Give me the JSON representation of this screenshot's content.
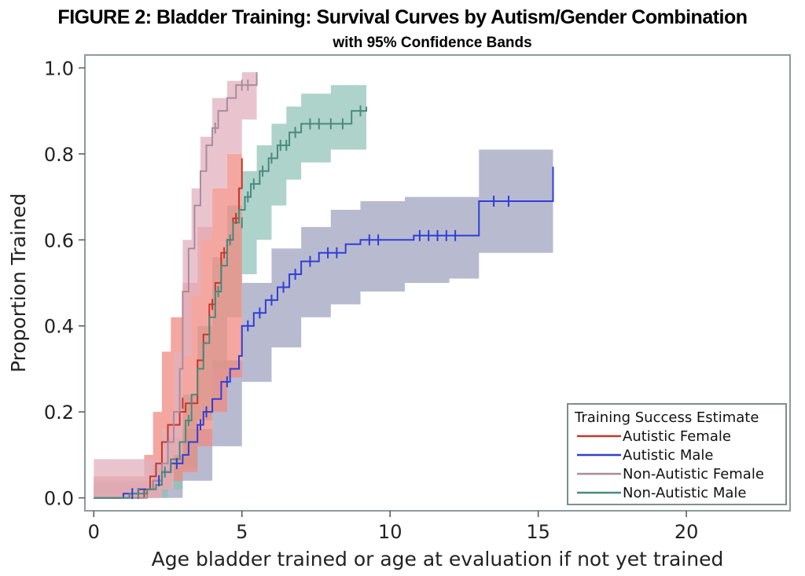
{
  "chart_data": {
    "type": "line",
    "title_prefix": "FIGURE 2:",
    "title_rest": " Bladder Training: Survival Curves by Autism/Gender Combination",
    "subtitle": "with 95% Confidence Bands",
    "xlabel": "Age bladder trained or age at evaluation if not yet trained",
    "ylabel": "Proportion Trained",
    "xlim": [
      -0.3,
      23.5
    ],
    "ylim": [
      -0.03,
      1.03
    ],
    "xticks": [
      0,
      5,
      10,
      15,
      20
    ],
    "yticks": [
      0.0,
      0.2,
      0.4,
      0.6,
      0.8,
      1.0
    ],
    "ytick_labels": [
      "0.0",
      "0.2",
      "0.4",
      "0.6",
      "0.8",
      "1.0"
    ],
    "grid": false,
    "legend": {
      "title": "Training Success Estimate",
      "placement": "bottom-right"
    },
    "series": [
      {
        "name": "Autistic Female",
        "color": "#c0392b",
        "band_color": "#f08a80",
        "band_opacity": 0.75,
        "steps": [
          [
            0,
            0.0
          ],
          [
            1.7,
            0.0
          ],
          [
            1.7,
            0.02
          ],
          [
            1.9,
            0.02
          ],
          [
            1.9,
            0.05
          ],
          [
            2.1,
            0.05
          ],
          [
            2.1,
            0.08
          ],
          [
            2.3,
            0.08
          ],
          [
            2.3,
            0.13
          ],
          [
            2.5,
            0.13
          ],
          [
            2.5,
            0.17
          ],
          [
            2.9,
            0.17
          ],
          [
            2.9,
            0.2
          ],
          [
            3.1,
            0.2
          ],
          [
            3.1,
            0.22
          ],
          [
            3.5,
            0.22
          ],
          [
            3.5,
            0.32
          ],
          [
            3.7,
            0.32
          ],
          [
            3.7,
            0.38
          ],
          [
            3.9,
            0.38
          ],
          [
            3.9,
            0.45
          ],
          [
            4.1,
            0.45
          ],
          [
            4.1,
            0.5
          ],
          [
            4.3,
            0.5
          ],
          [
            4.3,
            0.57
          ],
          [
            4.5,
            0.57
          ],
          [
            4.5,
            0.6
          ],
          [
            4.7,
            0.6
          ],
          [
            4.7,
            0.65
          ],
          [
            4.9,
            0.65
          ],
          [
            4.9,
            0.72
          ],
          [
            5.0,
            0.72
          ],
          [
            5.0,
            0.79
          ]
        ],
        "band": {
          "x": [
            0,
            1.7,
            2.0,
            2.3,
            2.6,
            3.0,
            3.5,
            4.0,
            4.5,
            5.0
          ],
          "lower": [
            0.0,
            0.0,
            0.0,
            0.02,
            0.04,
            0.06,
            0.12,
            0.2,
            0.28,
            0.38
          ],
          "upper": [
            0.05,
            0.1,
            0.2,
            0.34,
            0.42,
            0.5,
            0.63,
            0.72,
            0.8,
            0.85
          ]
        },
        "censored": [
          [
            3.0,
            0.22
          ],
          [
            4.0,
            0.45
          ],
          [
            4.4,
            0.57
          ],
          [
            4.8,
            0.65
          ]
        ]
      },
      {
        "name": "Autistic Male",
        "color": "#2f3fd6",
        "band_color": "#9a9cbc",
        "band_opacity": 0.7,
        "steps": [
          [
            0,
            0.0
          ],
          [
            1.0,
            0.0
          ],
          [
            1.0,
            0.01
          ],
          [
            1.5,
            0.01
          ],
          [
            1.5,
            0.02
          ],
          [
            2.0,
            0.02
          ],
          [
            2.0,
            0.04
          ],
          [
            2.3,
            0.04
          ],
          [
            2.3,
            0.06
          ],
          [
            2.6,
            0.06
          ],
          [
            2.6,
            0.08
          ],
          [
            3.0,
            0.08
          ],
          [
            3.0,
            0.1
          ],
          [
            3.2,
            0.1
          ],
          [
            3.2,
            0.13
          ],
          [
            3.5,
            0.13
          ],
          [
            3.5,
            0.17
          ],
          [
            3.7,
            0.17
          ],
          [
            3.7,
            0.2
          ],
          [
            4.0,
            0.2
          ],
          [
            4.0,
            0.23
          ],
          [
            4.3,
            0.23
          ],
          [
            4.3,
            0.27
          ],
          [
            4.6,
            0.27
          ],
          [
            4.6,
            0.3
          ],
          [
            4.9,
            0.3
          ],
          [
            4.9,
            0.33
          ],
          [
            5.0,
            0.33
          ],
          [
            5.0,
            0.4
          ],
          [
            5.4,
            0.4
          ],
          [
            5.4,
            0.43
          ],
          [
            5.8,
            0.43
          ],
          [
            5.8,
            0.46
          ],
          [
            6.2,
            0.46
          ],
          [
            6.2,
            0.49
          ],
          [
            6.6,
            0.49
          ],
          [
            6.6,
            0.52
          ],
          [
            7.0,
            0.52
          ],
          [
            7.0,
            0.55
          ],
          [
            7.6,
            0.55
          ],
          [
            7.6,
            0.57
          ],
          [
            8.5,
            0.57
          ],
          [
            8.5,
            0.59
          ],
          [
            9.0,
            0.59
          ],
          [
            9.0,
            0.6
          ],
          [
            10.8,
            0.6
          ],
          [
            10.8,
            0.61
          ],
          [
            13.0,
            0.61
          ],
          [
            13.0,
            0.69
          ],
          [
            15.5,
            0.69
          ],
          [
            15.5,
            0.77
          ]
        ],
        "band": {
          "x": [
            0,
            1.0,
            2.0,
            3.0,
            4.0,
            5.0,
            6.0,
            7.0,
            8.0,
            9.0,
            10.5,
            12.0,
            13.0,
            15.5
          ],
          "lower": [
            0.0,
            0.0,
            0.0,
            0.04,
            0.12,
            0.27,
            0.35,
            0.42,
            0.45,
            0.48,
            0.5,
            0.51,
            0.57,
            0.57
          ],
          "upper": [
            0.03,
            0.03,
            0.07,
            0.16,
            0.32,
            0.5,
            0.58,
            0.63,
            0.67,
            0.69,
            0.7,
            0.7,
            0.81,
            0.81
          ]
        },
        "censored": [
          [
            1.3,
            0.01
          ],
          [
            2.2,
            0.04
          ],
          [
            2.8,
            0.08
          ],
          [
            3.6,
            0.17
          ],
          [
            3.8,
            0.2
          ],
          [
            4.5,
            0.27
          ],
          [
            5.2,
            0.4
          ],
          [
            5.6,
            0.43
          ],
          [
            6.0,
            0.46
          ],
          [
            6.4,
            0.49
          ],
          [
            6.8,
            0.52
          ],
          [
            7.3,
            0.55
          ],
          [
            7.9,
            0.57
          ],
          [
            8.2,
            0.57
          ],
          [
            9.3,
            0.6
          ],
          [
            9.6,
            0.6
          ],
          [
            11.0,
            0.61
          ],
          [
            11.3,
            0.61
          ],
          [
            11.6,
            0.61
          ],
          [
            11.9,
            0.61
          ],
          [
            12.2,
            0.61
          ],
          [
            13.5,
            0.69
          ],
          [
            14.0,
            0.69
          ]
        ]
      },
      {
        "name": "Non-Autistic Female",
        "color": "#a98c9c",
        "band_color": "#e2b0bf",
        "band_opacity": 0.75,
        "steps": [
          [
            0,
            0.0
          ],
          [
            1.8,
            0.0
          ],
          [
            1.8,
            0.02
          ],
          [
            2.0,
            0.02
          ],
          [
            2.0,
            0.04
          ],
          [
            2.3,
            0.04
          ],
          [
            2.3,
            0.08
          ],
          [
            2.5,
            0.08
          ],
          [
            2.5,
            0.13
          ],
          [
            2.7,
            0.13
          ],
          [
            2.7,
            0.2
          ],
          [
            2.9,
            0.2
          ],
          [
            2.9,
            0.3
          ],
          [
            3.0,
            0.3
          ],
          [
            3.0,
            0.48
          ],
          [
            3.2,
            0.48
          ],
          [
            3.2,
            0.58
          ],
          [
            3.4,
            0.58
          ],
          [
            3.4,
            0.68
          ],
          [
            3.6,
            0.68
          ],
          [
            3.6,
            0.76
          ],
          [
            3.8,
            0.76
          ],
          [
            3.8,
            0.82
          ],
          [
            4.0,
            0.82
          ],
          [
            4.0,
            0.86
          ],
          [
            4.2,
            0.86
          ],
          [
            4.2,
            0.9
          ],
          [
            4.5,
            0.9
          ],
          [
            4.5,
            0.93
          ],
          [
            4.8,
            0.93
          ],
          [
            4.8,
            0.96
          ],
          [
            5.5,
            0.96
          ],
          [
            5.5,
            0.99
          ]
        ],
        "band": {
          "x": [
            0,
            1.8,
            2.3,
            2.7,
            3.0,
            3.3,
            3.6,
            4.0,
            4.5,
            5.0,
            5.5
          ],
          "lower": [
            0.0,
            0.0,
            0.02,
            0.1,
            0.33,
            0.47,
            0.6,
            0.72,
            0.8,
            0.88,
            0.91
          ],
          "upper": [
            0.09,
            0.09,
            0.16,
            0.34,
            0.6,
            0.72,
            0.84,
            0.93,
            0.97,
            0.99,
            0.99
          ]
        },
        "censored": [
          [
            4.1,
            0.86
          ],
          [
            5.0,
            0.96
          ],
          [
            5.2,
            0.96
          ]
        ]
      },
      {
        "name": "Non-Autistic Male",
        "color": "#4a8a7c",
        "band_color": "#8cc1b4",
        "band_opacity": 0.7,
        "steps": [
          [
            0,
            0.0
          ],
          [
            1.2,
            0.0
          ],
          [
            1.2,
            0.01
          ],
          [
            1.8,
            0.01
          ],
          [
            1.8,
            0.02
          ],
          [
            2.1,
            0.02
          ],
          [
            2.1,
            0.03
          ],
          [
            2.3,
            0.03
          ],
          [
            2.3,
            0.06
          ],
          [
            2.6,
            0.06
          ],
          [
            2.6,
            0.09
          ],
          [
            2.9,
            0.09
          ],
          [
            2.9,
            0.13
          ],
          [
            3.1,
            0.13
          ],
          [
            3.1,
            0.18
          ],
          [
            3.3,
            0.18
          ],
          [
            3.3,
            0.24
          ],
          [
            3.5,
            0.24
          ],
          [
            3.5,
            0.3
          ],
          [
            3.7,
            0.3
          ],
          [
            3.7,
            0.36
          ],
          [
            3.9,
            0.36
          ],
          [
            3.9,
            0.42
          ],
          [
            4.1,
            0.42
          ],
          [
            4.1,
            0.48
          ],
          [
            4.3,
            0.48
          ],
          [
            4.3,
            0.54
          ],
          [
            4.5,
            0.54
          ],
          [
            4.5,
            0.6
          ],
          [
            4.7,
            0.6
          ],
          [
            4.7,
            0.64
          ],
          [
            4.9,
            0.64
          ],
          [
            4.9,
            0.67
          ],
          [
            5.1,
            0.67
          ],
          [
            5.1,
            0.7
          ],
          [
            5.3,
            0.7
          ],
          [
            5.3,
            0.73
          ],
          [
            5.6,
            0.73
          ],
          [
            5.6,
            0.76
          ],
          [
            5.9,
            0.76
          ],
          [
            5.9,
            0.79
          ],
          [
            6.2,
            0.79
          ],
          [
            6.2,
            0.82
          ],
          [
            6.6,
            0.82
          ],
          [
            6.6,
            0.85
          ],
          [
            7.0,
            0.85
          ],
          [
            7.0,
            0.87
          ],
          [
            8.7,
            0.87
          ],
          [
            8.7,
            0.9
          ],
          [
            9.2,
            0.9
          ],
          [
            9.2,
            0.91
          ]
        ],
        "band": {
          "x": [
            0,
            1.2,
            2.0,
            2.5,
            3.0,
            3.5,
            4.0,
            4.5,
            5.0,
            5.5,
            6.0,
            6.5,
            7.0,
            8.0,
            9.2
          ],
          "lower": [
            0.0,
            0.0,
            0.0,
            0.02,
            0.07,
            0.18,
            0.3,
            0.42,
            0.52,
            0.6,
            0.68,
            0.74,
            0.78,
            0.81,
            0.82
          ],
          "upper": [
            0.04,
            0.04,
            0.08,
            0.14,
            0.24,
            0.4,
            0.56,
            0.68,
            0.76,
            0.82,
            0.87,
            0.91,
            0.94,
            0.96,
            0.96
          ]
        },
        "censored": [
          [
            1.5,
            0.01
          ],
          [
            2.4,
            0.06
          ],
          [
            3.2,
            0.18
          ],
          [
            4.2,
            0.48
          ],
          [
            4.6,
            0.6
          ],
          [
            5.0,
            0.64
          ],
          [
            5.2,
            0.7
          ],
          [
            5.4,
            0.73
          ],
          [
            5.7,
            0.76
          ],
          [
            6.0,
            0.79
          ],
          [
            6.3,
            0.82
          ],
          [
            6.5,
            0.82
          ],
          [
            6.8,
            0.85
          ],
          [
            7.3,
            0.87
          ],
          [
            7.6,
            0.87
          ],
          [
            8.0,
            0.87
          ],
          [
            8.4,
            0.87
          ],
          [
            9.0,
            0.9
          ]
        ]
      }
    ]
  }
}
